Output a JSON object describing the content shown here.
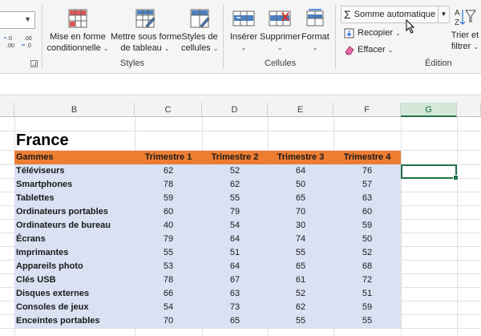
{
  "ribbon": {
    "number_format": {
      "increase_decimals_label": ".0\n.00",
      "decrease_decimals_label": ".00\n.0"
    },
    "styles": {
      "group_label": "Styles",
      "conditional_format": {
        "line1": "Mise en forme",
        "line2": "conditionnelle"
      },
      "format_as_table": {
        "line1": "Mettre sous forme",
        "line2": "de tableau"
      },
      "cell_styles": {
        "line1": "Styles de",
        "line2": "cellules"
      }
    },
    "cells": {
      "group_label": "Cellules",
      "insert": "Insérer",
      "delete": "Supprimer",
      "format": "Format"
    },
    "editing": {
      "group_label": "Édition",
      "autosum": "Somme automatique",
      "fill": "Recopier",
      "clear": "Effacer",
      "sort_filter": {
        "line1": "Trier et",
        "line2": "filtrer"
      }
    }
  },
  "grid": {
    "columns": [
      "B",
      "C",
      "D",
      "E",
      "F",
      "G"
    ],
    "selected_column": "G",
    "title": "France",
    "table": {
      "headers": [
        "Gammes",
        "Trimestre 1",
        "Trimestre 2",
        "Trimestre 3",
        "Trimestre 4"
      ],
      "rows": [
        {
          "name": "Téléviseurs",
          "values": [
            "62",
            "52",
            "64",
            "76"
          ]
        },
        {
          "name": "Smartphones",
          "values": [
            "78",
            "62",
            "50",
            "57"
          ]
        },
        {
          "name": "Tablettes",
          "values": [
            "59",
            "55",
            "65",
            "63"
          ]
        },
        {
          "name": "Ordinateurs portables",
          "values": [
            "60",
            "79",
            "70",
            "60"
          ]
        },
        {
          "name": "Ordinateurs de bureau",
          "values": [
            "40",
            "54",
            "30",
            "59"
          ]
        },
        {
          "name": "Écrans",
          "values": [
            "79",
            "64",
            "74",
            "50"
          ]
        },
        {
          "name": "Imprimantes",
          "values": [
            "55",
            "51",
            "55",
            "52"
          ]
        },
        {
          "name": "Appareils photo",
          "values": [
            "53",
            "64",
            "65",
            "68"
          ]
        },
        {
          "name": "Clés USB",
          "values": [
            "78",
            "67",
            "61",
            "72"
          ]
        },
        {
          "name": "Disques externes",
          "values": [
            "66",
            "63",
            "52",
            "51"
          ]
        },
        {
          "name": "Consoles de jeux",
          "values": [
            "54",
            "73",
            "62",
            "59"
          ]
        },
        {
          "name": "Enceintes portables",
          "values": [
            "70",
            "65",
            "55",
            "55"
          ]
        }
      ]
    }
  },
  "colors": {
    "header_fill": "#ed7d31",
    "body_fill": "#d9e1f2",
    "selection": "#217346"
  }
}
